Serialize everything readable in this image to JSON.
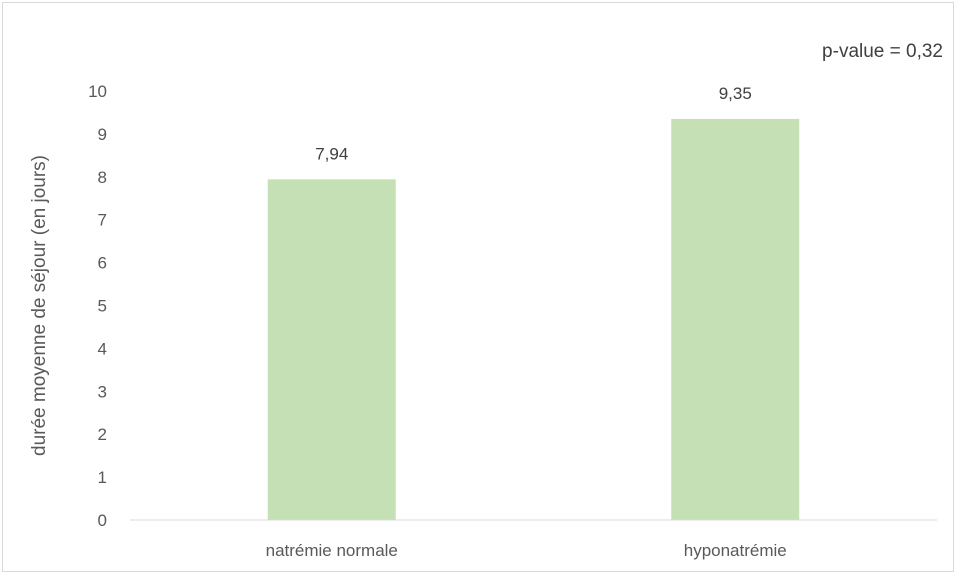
{
  "chart_data": {
    "type": "bar",
    "categories": [
      "natrémie normale",
      "hyponatrémie"
    ],
    "series": [
      {
        "values": [
          7.94,
          9.35
        ],
        "value_labels": [
          "7,94",
          "9,35"
        ],
        "color": "#c5e0b4"
      }
    ],
    "ylabel": "durée moyenne de séjour (en jours)",
    "xlabel": "",
    "ylim": [
      0,
      10
    ],
    "yticks": [
      0,
      1,
      2,
      3,
      4,
      5,
      6,
      7,
      8,
      9,
      10
    ],
    "grid": false,
    "annotation": "p-value = 0,32",
    "colors": {
      "bar": "#c5e0b4",
      "axis": "#d9d9d9",
      "text": "#595959"
    }
  }
}
